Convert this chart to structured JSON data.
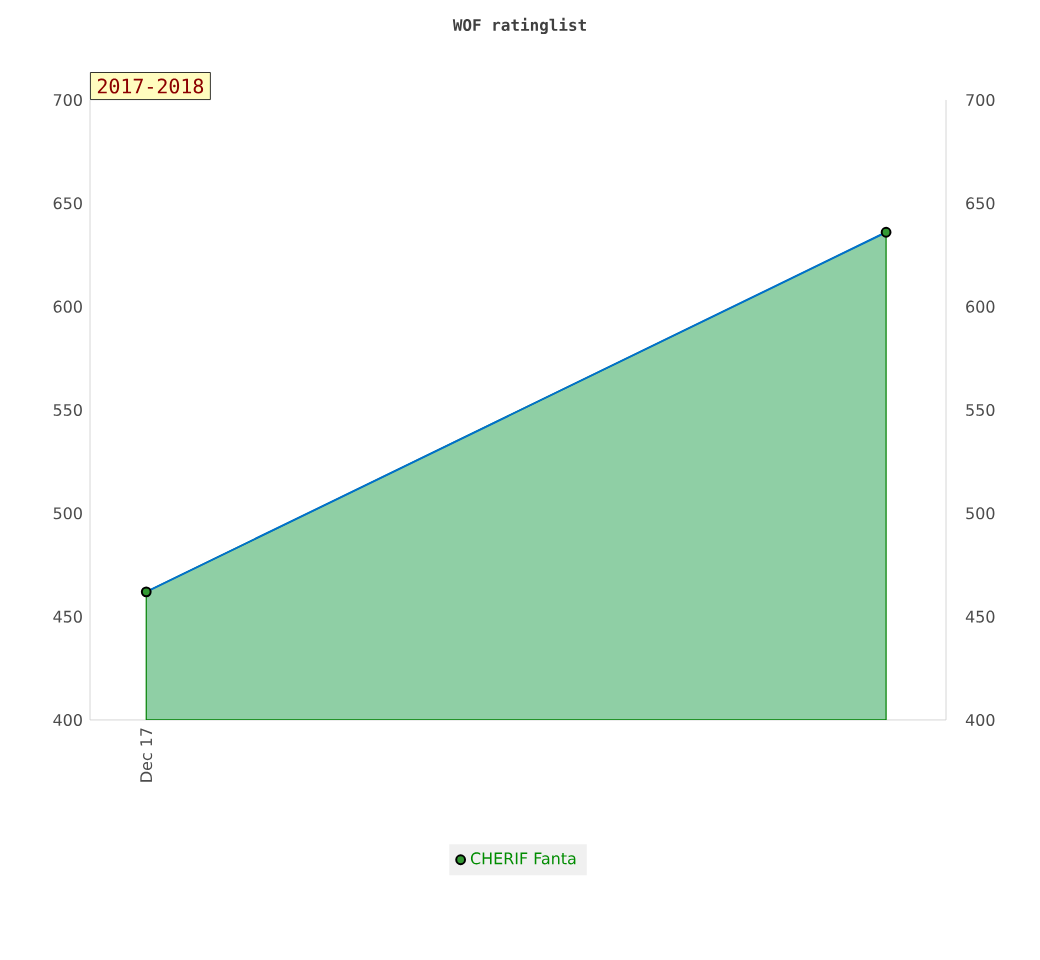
{
  "chart_data": {
    "type": "area",
    "title": "WOF ratinglist",
    "categories": [
      "Dec 17",
      null
    ],
    "series": [
      {
        "name": "CHERIF Fanta",
        "color": "#8fcfa5",
        "values": [
          462,
          636
        ]
      }
    ],
    "ylim": [
      400,
      700
    ],
    "yticks": [
      400,
      450,
      500,
      550,
      600,
      650,
      700
    ],
    "y2lim": [
      400,
      700
    ],
    "y2ticks": [
      400,
      450,
      500,
      550,
      600,
      650,
      700
    ],
    "marker": "circle",
    "legend": "bottom",
    "annotations": [
      "2017-2018"
    ]
  }
}
